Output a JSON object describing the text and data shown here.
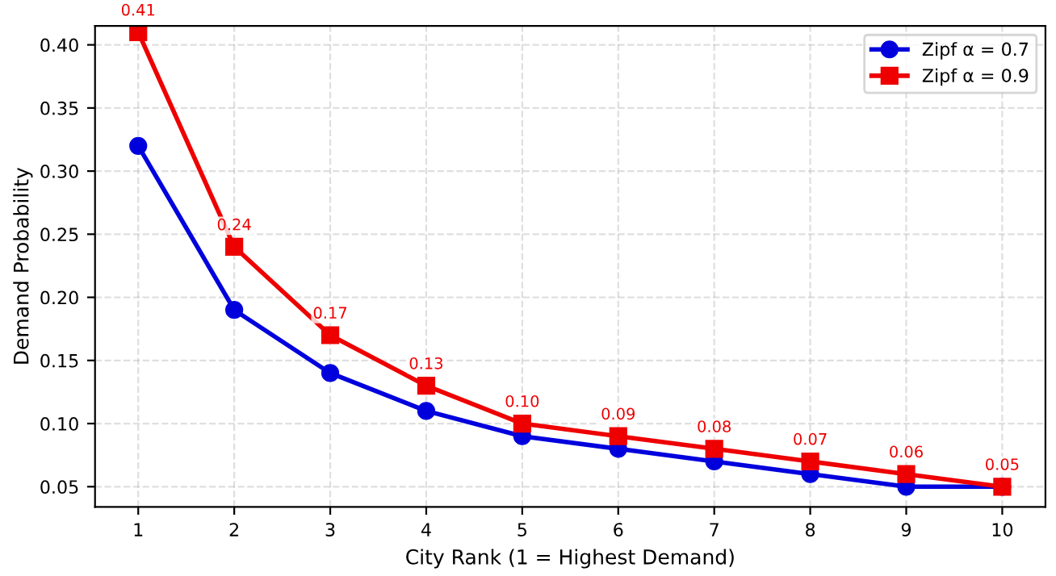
{
  "chart_data": {
    "type": "line",
    "xlabel": "City Rank (1 = Highest Demand)",
    "ylabel": "Demand Probability",
    "x": [
      1,
      2,
      3,
      4,
      5,
      6,
      7,
      8,
      9,
      10
    ],
    "series": [
      {
        "name": "Zipf α = 0.7",
        "color": "#0000dd",
        "marker": "circle",
        "values": [
          0.32,
          0.19,
          0.14,
          0.11,
          0.09,
          0.08,
          0.07,
          0.06,
          0.05,
          0.05
        ]
      },
      {
        "name": "Zipf α = 0.9",
        "color": "#ee0000",
        "marker": "square",
        "values": [
          0.41,
          0.24,
          0.17,
          0.13,
          0.1,
          0.09,
          0.08,
          0.07,
          0.06,
          0.05
        ],
        "value_labels": [
          "0.41",
          "0.24",
          "0.17",
          "0.13",
          "0.10",
          "0.09",
          "0.08",
          "0.07",
          "0.06",
          "0.05"
        ]
      }
    ],
    "xlim": [
      0.55,
      10.45
    ],
    "xticks": [
      1,
      2,
      3,
      4,
      5,
      6,
      7,
      8,
      9,
      10
    ],
    "ylim": [
      0.034,
      0.415
    ],
    "yticks": [
      {
        "value": 0.05,
        "label": "0.05"
      },
      {
        "value": 0.1,
        "label": "0.10"
      },
      {
        "value": 0.15,
        "label": "0.15"
      },
      {
        "value": 0.2,
        "label": "0.20"
      },
      {
        "value": 0.25,
        "label": "0.25"
      },
      {
        "value": 0.3,
        "label": "0.30"
      },
      {
        "value": 0.35,
        "label": "0.35"
      },
      {
        "value": 0.4,
        "label": "0.40"
      }
    ],
    "grid": true,
    "legend": "top right",
    "line_style": "solid"
  }
}
